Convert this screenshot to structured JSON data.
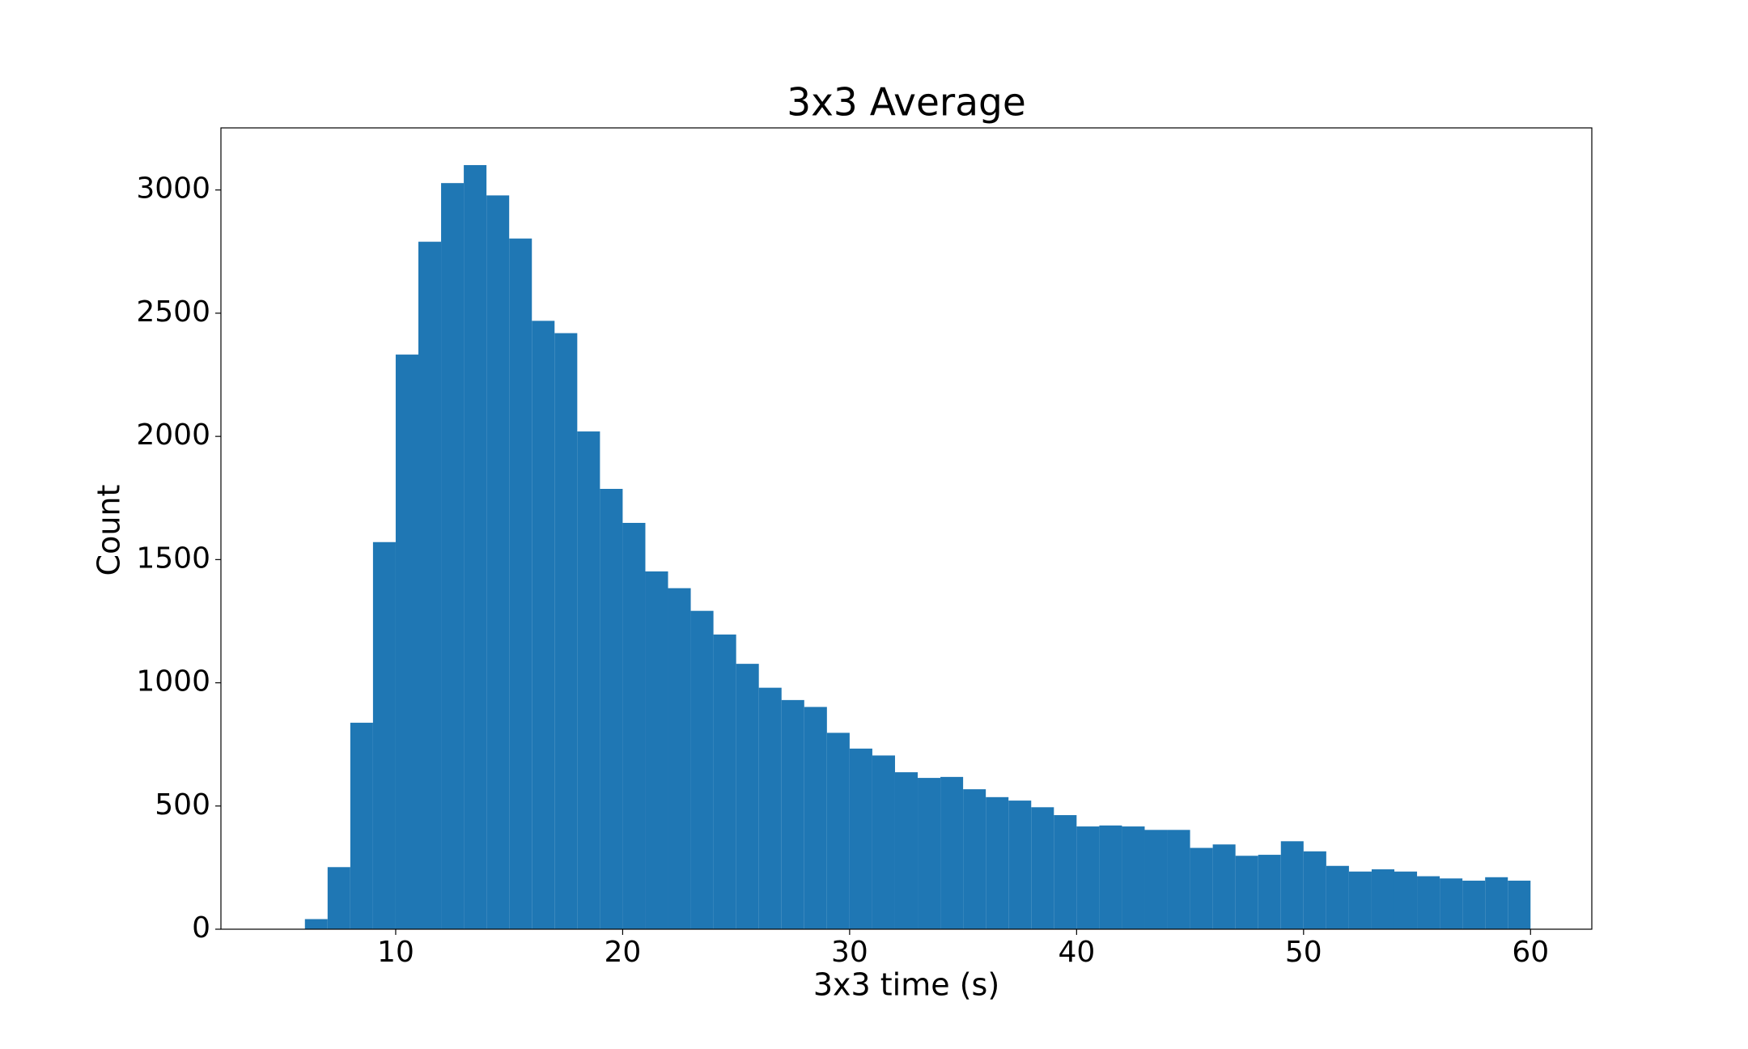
{
  "chart_data": {
    "type": "histogram",
    "title": "3x3 Average",
    "x_label": "3x3 time (s)",
    "y_label": "Count",
    "bins": [
      6,
      7,
      8,
      9,
      10,
      11,
      12,
      13,
      14,
      15,
      16,
      17,
      18,
      19,
      20,
      21,
      22,
      23,
      24,
      25,
      26,
      27,
      28,
      29,
      30,
      31,
      32,
      33,
      34,
      35,
      36,
      37,
      38,
      39,
      40,
      41,
      42,
      43,
      44,
      45,
      46,
      47,
      48,
      49,
      50,
      51,
      52,
      53,
      54,
      55,
      56,
      57,
      58,
      59,
      60
    ],
    "values": [
      41,
      252,
      838,
      1571,
      2332,
      2790,
      3028,
      3101,
      2978,
      2803,
      2469,
      2419,
      2020,
      1787,
      1649,
      1452,
      1384,
      1292,
      1196,
      1077,
      980,
      930,
      902,
      797,
      733,
      705,
      637,
      614,
      618,
      568,
      536,
      522,
      495,
      463,
      417,
      421,
      417,
      403,
      403,
      330,
      344,
      298,
      302,
      357,
      316,
      257,
      234,
      243,
      234,
      215,
      206,
      197,
      211,
      197
    ],
    "color": "#1f77b4",
    "xlim": [
      2.3,
      62.7
    ],
    "xticks": [
      10,
      20,
      30,
      40,
      50,
      60
    ],
    "ylim": [
      0,
      3252
    ],
    "yticks": [
      0,
      500,
      1000,
      1500,
      2000,
      2500,
      3000
    ]
  }
}
